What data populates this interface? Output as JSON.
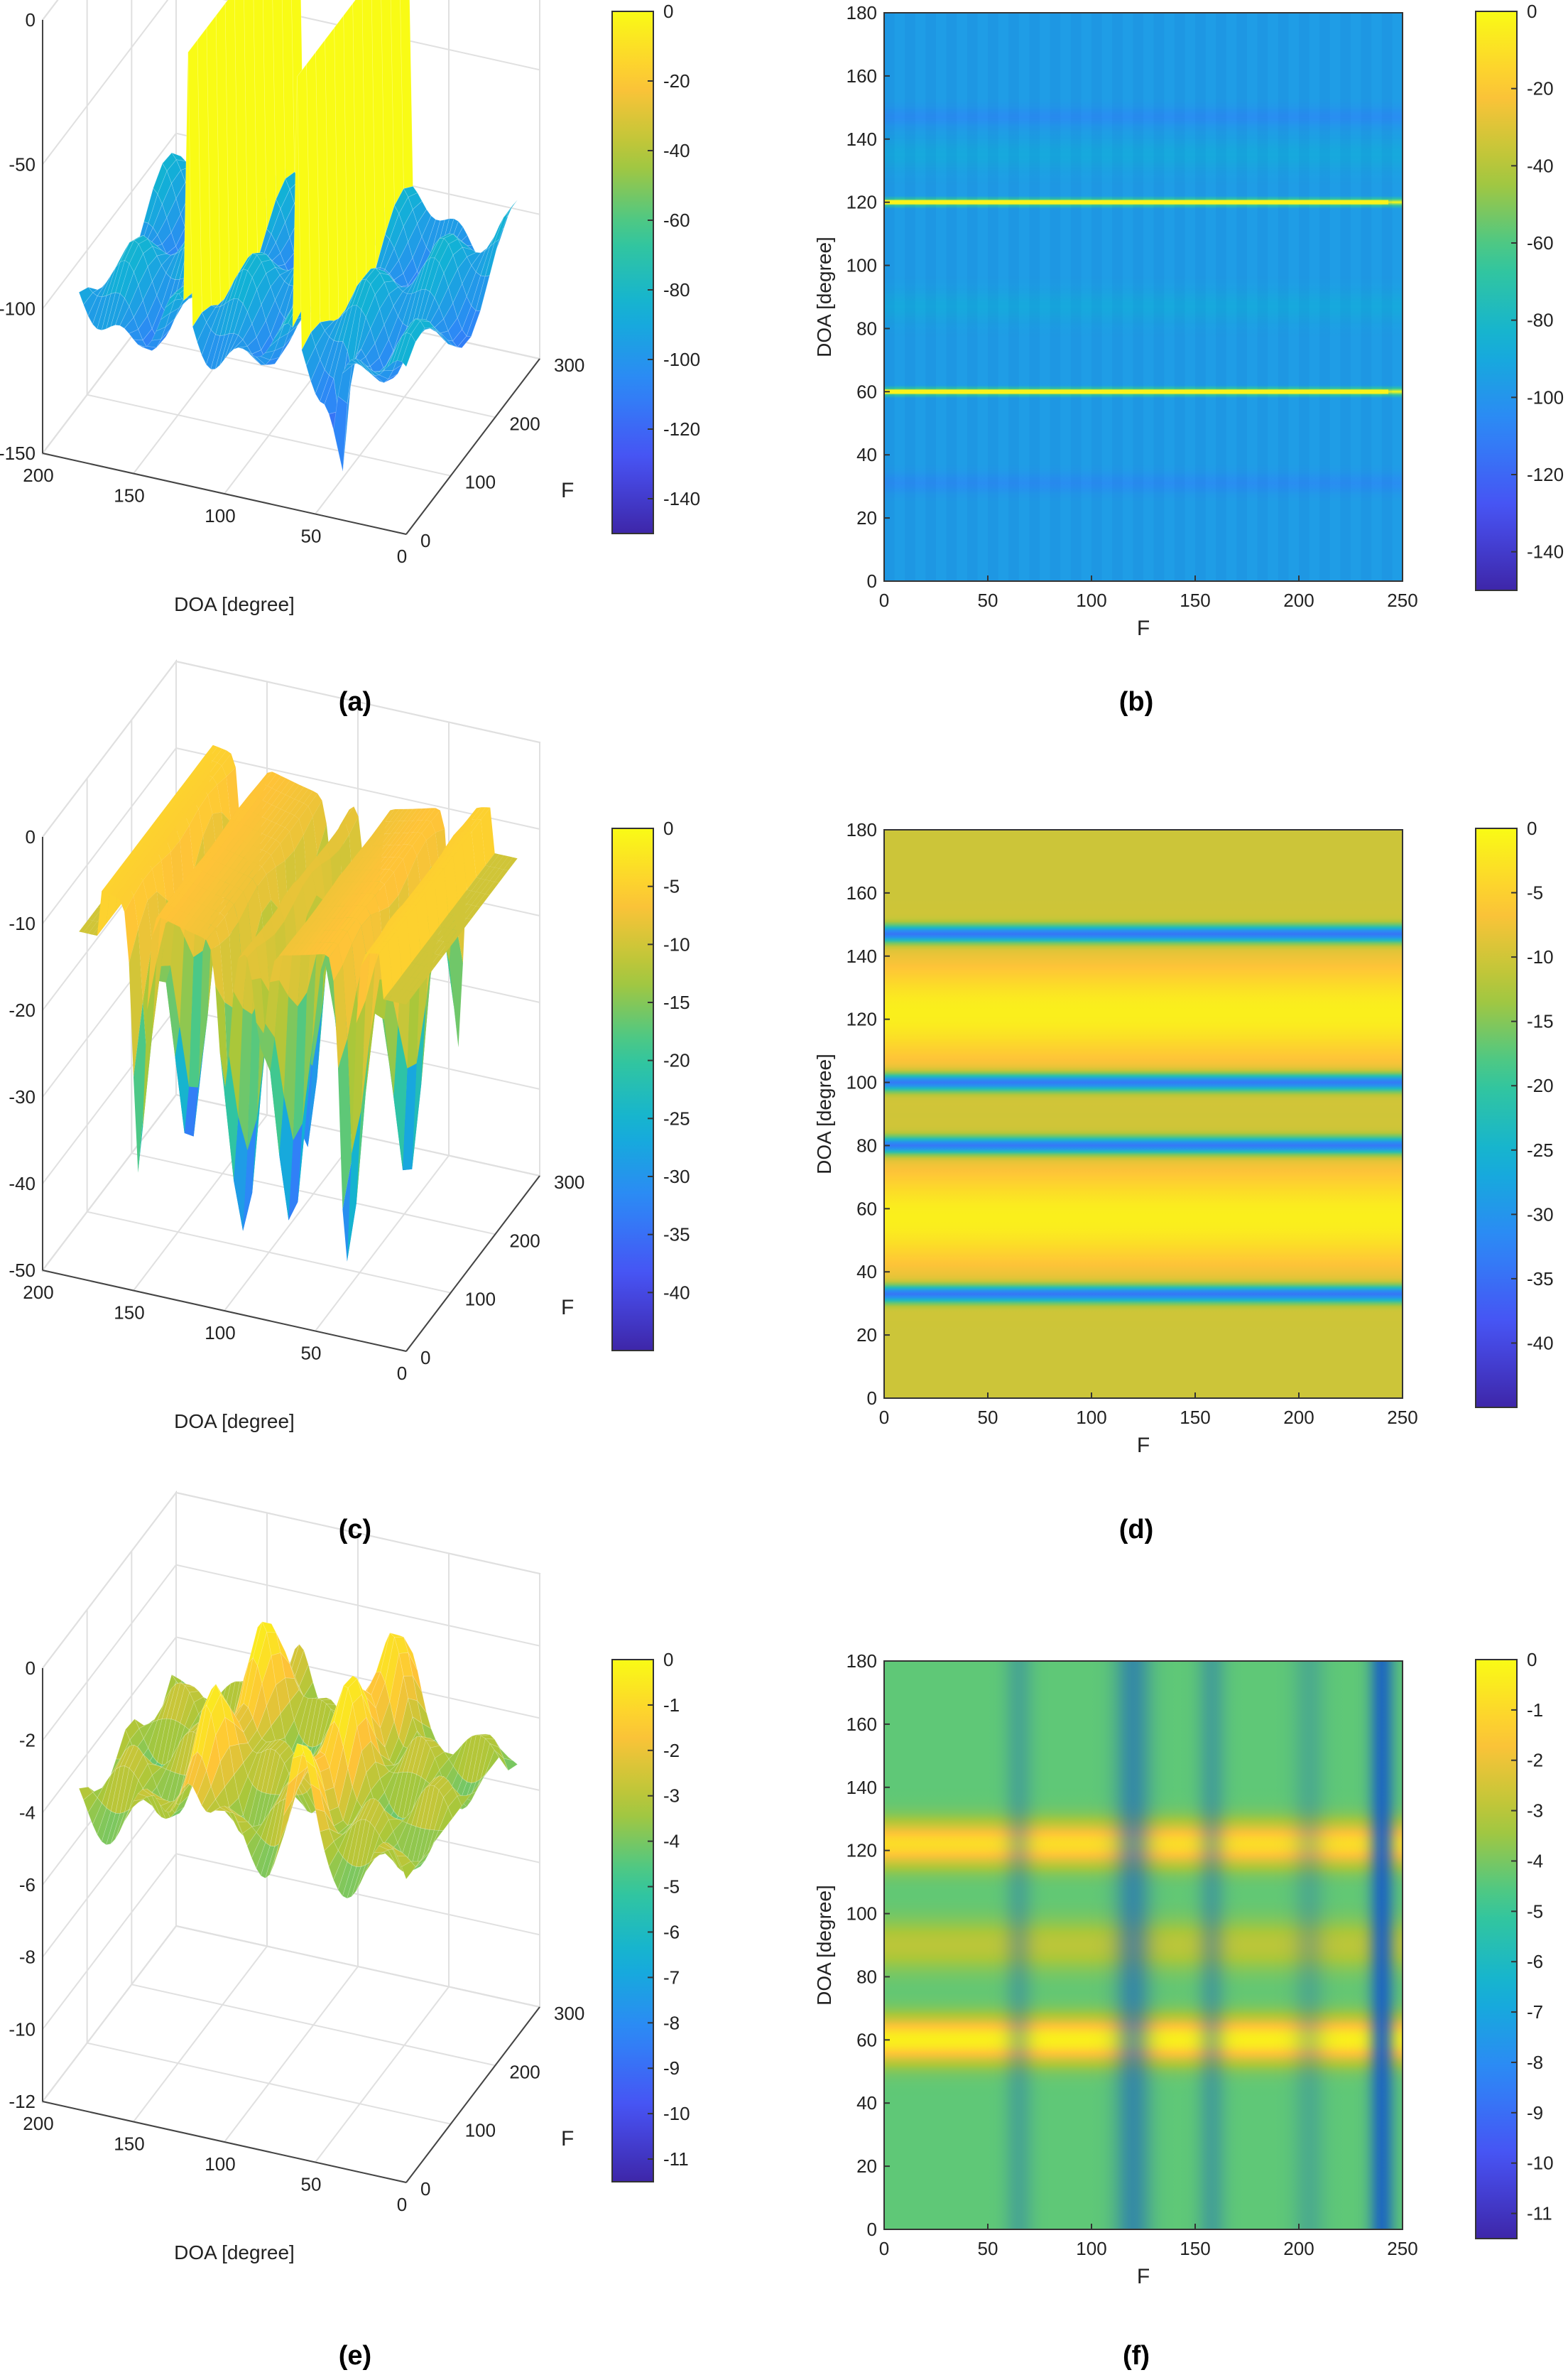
{
  "chart_data": [
    {
      "id": "a",
      "type": "surface3d",
      "caption": "(a)",
      "xlabel": "DOA [degree]",
      "ylabel": "F",
      "zlabel": "",
      "doa_ticks": [
        0,
        50,
        100,
        150,
        200
      ],
      "f_ticks": [
        0,
        100,
        200,
        300
      ],
      "z_ticks": [
        -150,
        -100,
        -50,
        0
      ],
      "zlim": [
        -150,
        0
      ],
      "doa_range": [
        0,
        180
      ],
      "f_range": [
        0,
        250
      ],
      "colorbar": {
        "clim": [
          -150,
          0
        ],
        "ticks": [
          0,
          -20,
          -40,
          -60,
          -80,
          -100,
          -120,
          -140
        ]
      },
      "surface": {
        "style": "spiky",
        "peaks_doa": [
          60,
          120
        ],
        "floor": -100
      }
    },
    {
      "id": "b",
      "type": "heatmap",
      "caption": "(b)",
      "xlabel": "F",
      "ylabel": "DOA [degree]",
      "xticks": [
        0,
        50,
        100,
        150,
        200,
        250
      ],
      "yticks": [
        0,
        20,
        40,
        60,
        80,
        100,
        120,
        140,
        160,
        180
      ],
      "xlim": [
        0,
        250
      ],
      "ylim": [
        0,
        180
      ],
      "colorbar": {
        "clim": [
          -150,
          0
        ],
        "ticks": [
          0,
          -20,
          -40,
          -60,
          -80,
          -100,
          -120,
          -140
        ]
      },
      "lines_doa": [
        60,
        120
      ]
    },
    {
      "id": "c",
      "type": "surface3d",
      "caption": "(c)",
      "xlabel": "DOA [degree]",
      "ylabel": "F",
      "zlabel": "",
      "doa_ticks": [
        0,
        50,
        100,
        150,
        200
      ],
      "f_ticks": [
        0,
        100,
        200,
        300
      ],
      "z_ticks": [
        -50,
        -40,
        -30,
        -20,
        -10,
        0
      ],
      "zlim": [
        -50,
        0
      ],
      "doa_range": [
        0,
        180
      ],
      "f_range": [
        0,
        250
      ],
      "colorbar": {
        "clim": [
          -45,
          0
        ],
        "ticks": [
          0,
          -5,
          -10,
          -15,
          -20,
          -25,
          -30,
          -35,
          -40
        ]
      },
      "surface": {
        "style": "smooth",
        "nulls_doa": [
          33,
          80,
          100,
          147
        ],
        "floor": -10
      }
    },
    {
      "id": "d",
      "type": "heatmap",
      "caption": "(d)",
      "xlabel": "F",
      "ylabel": "DOA [degree]",
      "xticks": [
        0,
        50,
        100,
        150,
        200,
        250
      ],
      "yticks": [
        0,
        20,
        40,
        60,
        80,
        100,
        120,
        140,
        160,
        180
      ],
      "xlim": [
        0,
        250
      ],
      "ylim": [
        0,
        180
      ],
      "colorbar": {
        "clim": [
          -45,
          0
        ],
        "ticks": [
          0,
          -5,
          -10,
          -15,
          -20,
          -25,
          -30,
          -35,
          -40
        ]
      },
      "nulls_doa": [
        33,
        80,
        100,
        147
      ]
    },
    {
      "id": "e",
      "type": "surface3d",
      "caption": "(e)",
      "xlabel": "DOA [degree]",
      "ylabel": "F",
      "zlabel": "",
      "doa_ticks": [
        0,
        50,
        100,
        150,
        200
      ],
      "f_ticks": [
        0,
        100,
        200,
        300
      ],
      "z_ticks": [
        -12,
        -10,
        -8,
        -6,
        -4,
        -2,
        0
      ],
      "zlim": [
        -12,
        0
      ],
      "doa_range": [
        0,
        180
      ],
      "f_range": [
        0,
        250
      ],
      "colorbar": {
        "clim": [
          -11.5,
          0
        ],
        "ticks": [
          0,
          -1,
          -2,
          -3,
          -4,
          -5,
          -6,
          -7,
          -8,
          -9,
          -10,
          -11
        ]
      },
      "surface": {
        "style": "wavy",
        "peaks_doa": [
          60,
          120
        ],
        "floor": -4
      }
    },
    {
      "id": "f",
      "type": "heatmap",
      "caption": "(f)",
      "xlabel": "F",
      "ylabel": "DOA [degree]",
      "xticks": [
        0,
        50,
        100,
        150,
        200,
        250
      ],
      "yticks": [
        0,
        20,
        40,
        60,
        80,
        100,
        120,
        140,
        160,
        180
      ],
      "xlim": [
        0,
        250
      ],
      "ylim": [
        0,
        180
      ],
      "colorbar": {
        "clim": [
          -11.5,
          0
        ],
        "ticks": [
          0,
          -1,
          -2,
          -3,
          -4,
          -5,
          -6,
          -7,
          -8,
          -9,
          -10,
          -11
        ]
      },
      "dark_columns_f": [
        120,
        240
      ]
    }
  ]
}
